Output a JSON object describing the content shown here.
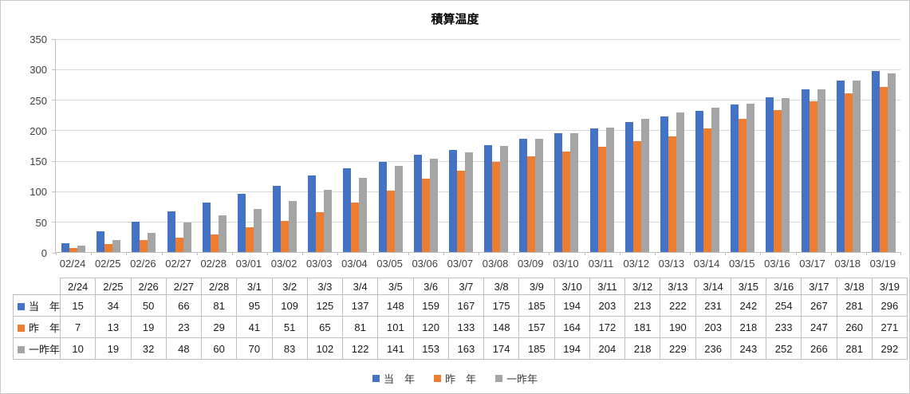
{
  "chart_data": {
    "type": "bar",
    "title": "積算温度",
    "xlabel": "",
    "ylabel": "",
    "ylim": [
      0,
      350
    ],
    "yticks": [
      0,
      50,
      100,
      150,
      200,
      250,
      300,
      350
    ],
    "grid": true,
    "legend_position": "bottom",
    "categories": [
      "02/24",
      "02/25",
      "02/26",
      "02/27",
      "02/28",
      "03/01",
      "03/02",
      "03/03",
      "03/04",
      "03/05",
      "03/06",
      "03/07",
      "03/08",
      "03/09",
      "03/10",
      "03/11",
      "03/12",
      "03/13",
      "03/14",
      "03/15",
      "03/16",
      "03/17",
      "03/18",
      "03/19"
    ],
    "series": [
      {
        "name": "当　年",
        "color": "#4472C4",
        "values": [
          15,
          34,
          50,
          66,
          81,
          95,
          109,
          125,
          137,
          148,
          159,
          167,
          175,
          185,
          194,
          203,
          213,
          222,
          231,
          242,
          254,
          267,
          281,
          296
        ]
      },
      {
        "name": "昨　年",
        "color": "#ED7D31",
        "values": [
          7,
          13,
          19,
          23,
          29,
          41,
          51,
          65,
          81,
          101,
          120,
          133,
          148,
          157,
          164,
          172,
          181,
          190,
          203,
          218,
          233,
          247,
          260,
          271
        ]
      },
      {
        "name": "一昨年",
        "color": "#A5A5A5",
        "values": [
          10,
          19,
          32,
          48,
          60,
          70,
          83,
          102,
          122,
          141,
          153,
          163,
          174,
          185,
          194,
          204,
          218,
          229,
          236,
          243,
          252,
          266,
          281,
          292
        ]
      }
    ]
  },
  "table": {
    "date_headers": [
      "2/24",
      "2/25",
      "2/26",
      "2/27",
      "2/28",
      "3/1",
      "3/2",
      "3/3",
      "3/4",
      "3/5",
      "3/6",
      "3/7",
      "3/8",
      "3/9",
      "3/10",
      "3/11",
      "3/12",
      "3/13",
      "3/14",
      "3/15",
      "3/16",
      "3/17",
      "3/18",
      "3/19"
    ]
  },
  "colors": {
    "gridline": "#D9D9D9",
    "axis_line": "#BFBFBF",
    "axis_text": "#404040",
    "table_border": "#BFBFBF"
  }
}
